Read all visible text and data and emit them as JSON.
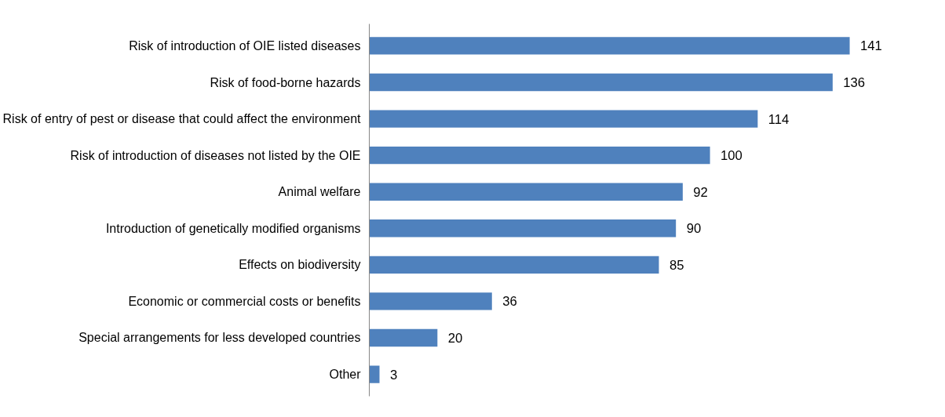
{
  "chart_data": {
    "type": "bar",
    "orientation": "horizontal",
    "categories": [
      "Risk of introduction of OIE listed diseases",
      "Risk of food-borne hazards",
      "Risk of entry of pest or disease that could affect the environment",
      "Risk of introduction of diseases not listed by the OIE",
      "Animal welfare",
      "Introduction of genetically modified organisms",
      "Effects on biodiversity",
      "Economic or commercial costs or benefits",
      "Special arrangements for less developed countries",
      "Other"
    ],
    "values": [
      141,
      136,
      114,
      100,
      92,
      90,
      85,
      36,
      20,
      3
    ],
    "color": "#4f81bd",
    "data_labels": true,
    "tick_labels": "y",
    "grid": false
  }
}
